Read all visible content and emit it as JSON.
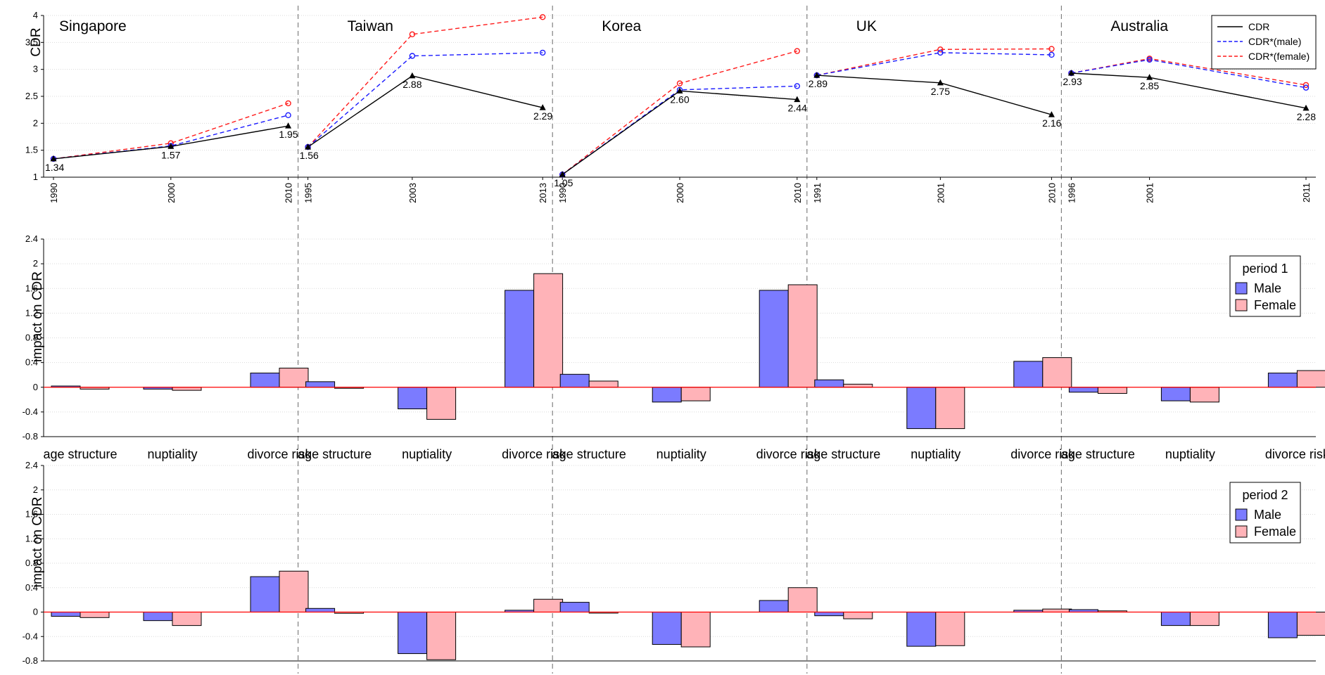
{
  "chart_data": [
    {
      "type": "line",
      "ylabel": "CDR",
      "ylim": [
        1,
        4
      ],
      "yticks": [
        "1",
        "1.5",
        "2",
        "2.5",
        "3",
        "3.5",
        "4"
      ],
      "legend": {
        "placement": "top-right",
        "entries": [
          "CDR",
          "CDR*(male)",
          "CDR*(female)"
        ]
      },
      "colors": {
        "cdr": "#000000",
        "male": "#1a1aff",
        "female": "#ff1a1a"
      },
      "countries": [
        {
          "name": "Singapore",
          "years": [
            "1990",
            "2000",
            "2010"
          ],
          "cdr": [
            1.34,
            1.57,
            1.95
          ],
          "cdr_labels": [
            "1.34",
            "1.57",
            "1.95"
          ],
          "male": [
            1.34,
            1.58,
            2.15
          ],
          "female": [
            1.34,
            1.63,
            2.37
          ]
        },
        {
          "name": "Taiwan",
          "years": [
            "1995",
            "2003",
            "2013"
          ],
          "cdr": [
            1.56,
            2.88,
            2.29
          ],
          "cdr_labels": [
            "1.56",
            "2.88",
            "2.29"
          ],
          "male": [
            1.56,
            3.25,
            3.31
          ],
          "female": [
            1.56,
            3.65,
            3.97
          ]
        },
        {
          "name": "Korea",
          "years": [
            "1990",
            "2000",
            "2010"
          ],
          "cdr": [
            1.05,
            2.6,
            2.44
          ],
          "cdr_labels": [
            "1.05",
            "2.60",
            "2.44"
          ],
          "male": [
            1.05,
            2.62,
            2.69
          ],
          "female": [
            1.05,
            2.74,
            3.34
          ]
        },
        {
          "name": "UK",
          "years": [
            "1991",
            "2001",
            "2010"
          ],
          "cdr": [
            2.89,
            2.75,
            2.16
          ],
          "cdr_labels": [
            "2.89",
            "2.75",
            "2.16"
          ],
          "male": [
            2.89,
            3.31,
            3.27
          ],
          "female": [
            2.89,
            3.37,
            3.38
          ]
        },
        {
          "name": "Australia",
          "years": [
            "1996",
            "2001",
            "2011"
          ],
          "cdr": [
            2.93,
            2.85,
            2.28
          ],
          "cdr_labels": [
            "2.93",
            "2.85",
            "2.28"
          ],
          "male": [
            2.93,
            3.18,
            2.66
          ],
          "female": [
            2.93,
            3.2,
            2.71
          ]
        }
      ]
    },
    {
      "type": "bar",
      "panel": "period 1",
      "ylabel": "impact on CDR",
      "ylim": [
        -0.8,
        2.4
      ],
      "yticks": [
        "-0.8",
        "-0.4",
        "0",
        "0.4",
        "0.8",
        "1.2",
        "1.6",
        "2",
        "2.4"
      ],
      "categories": [
        "age structure",
        "nuptiality",
        "divorce risk"
      ],
      "legend": {
        "title": "period 1",
        "placement": "right",
        "entries": [
          "Male",
          "Female"
        ]
      },
      "colors": {
        "male": "#7b7bff",
        "female": "#ffb3b8"
      },
      "countries": [
        {
          "name": "Singapore",
          "male": [
            0.02,
            -0.03,
            0.23
          ],
          "female": [
            -0.03,
            -0.05,
            0.31
          ]
        },
        {
          "name": "Taiwan",
          "male": [
            0.09,
            -0.35,
            1.57
          ],
          "female": [
            -0.01,
            -0.52,
            1.84
          ]
        },
        {
          "name": "Korea",
          "male": [
            0.21,
            -0.24,
            1.57
          ],
          "female": [
            0.1,
            -0.22,
            1.66
          ]
        },
        {
          "name": "UK",
          "male": [
            0.12,
            -0.67,
            0.42
          ],
          "female": [
            0.05,
            -0.67,
            0.48
          ]
        },
        {
          "name": "Australia",
          "male": [
            -0.08,
            -0.22,
            0.23
          ],
          "female": [
            -0.1,
            -0.24,
            0.27
          ]
        }
      ]
    },
    {
      "type": "bar",
      "panel": "period 2",
      "ylabel": "impact on CDR",
      "ylim": [
        -0.8,
        2.4
      ],
      "yticks": [
        "-0.8",
        "-0.4",
        "0",
        "0.4",
        "0.8",
        "1.2",
        "1.6",
        "2",
        "2.4"
      ],
      "categories": [
        "age structure",
        "nuptiality",
        "divorce risk"
      ],
      "legend": {
        "title": "period 2",
        "placement": "right",
        "entries": [
          "Male",
          "Female"
        ]
      },
      "colors": {
        "male": "#7b7bff",
        "female": "#ffb3b8"
      },
      "countries": [
        {
          "name": "Singapore",
          "male": [
            -0.07,
            -0.14,
            0.58
          ],
          "female": [
            -0.09,
            -0.22,
            0.67
          ]
        },
        {
          "name": "Taiwan",
          "male": [
            0.06,
            -0.68,
            0.03
          ],
          "female": [
            -0.02,
            -0.78,
            0.21
          ]
        },
        {
          "name": "Korea",
          "male": [
            0.16,
            -0.53,
            0.19
          ],
          "female": [
            0.0,
            -0.57,
            0.4
          ]
        },
        {
          "name": "UK",
          "male": [
            -0.06,
            -0.56,
            0.03
          ],
          "female": [
            -0.11,
            -0.55,
            0.05
          ]
        },
        {
          "name": "Australia",
          "male": [
            0.04,
            -0.22,
            -0.42
          ],
          "female": [
            0.02,
            -0.22,
            -0.38
          ]
        }
      ]
    }
  ]
}
